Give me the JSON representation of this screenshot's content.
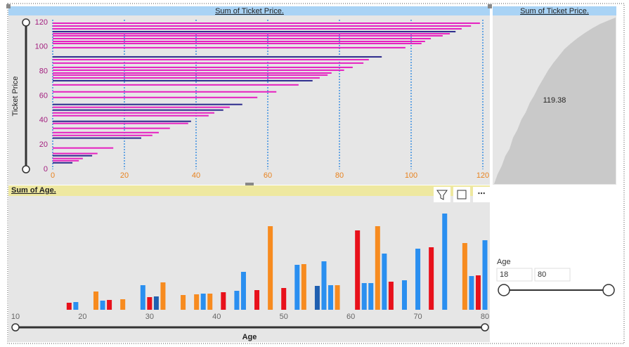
{
  "chart_data": [
    {
      "type": "hbar",
      "title": "Sum of Ticket Price.",
      "y_label": "Ticket Price",
      "xlim": [
        0,
        120
      ],
      "xticks": [
        0,
        20,
        40,
        60,
        80,
        100,
        120
      ],
      "ylim": [
        0,
        120
      ],
      "yticks": [
        0,
        20,
        40,
        60,
        80,
        100,
        120
      ],
      "grid": true,
      "series": [
        {
          "color": "#e520c0",
          "y": [
            119.4,
            117.1,
            114.8,
            110.8,
            109.1,
            106.8,
            104.5,
            102.8,
            99.4,
            89.6,
            86.8,
            83.3,
            81.0,
            78.7,
            77.0,
            74.7,
            69.0,
            63.3,
            58.7,
            50.7,
            46.1,
            43.8,
            37.5,
            33.5,
            30.0,
            27.7,
            17.4,
            12.9,
            8.8,
            7.0
          ],
          "values": [
            119.2,
            116.7,
            114.1,
            110.8,
            108.8,
            105.5,
            103.9,
            102.9,
            98.4,
            88.2,
            86.7,
            83.7,
            81.3,
            77.8,
            76.7,
            74.5,
            68.6,
            62.4,
            57.1,
            49.4,
            45.1,
            43.5,
            37.8,
            32.7,
            29.6,
            27.8,
            16.9,
            12.5,
            8.4,
            7.3
          ]
        },
        {
          "color": "#2b2a8c",
          "y": [
            112.5,
            91.9,
            72.4,
            53.0,
            48.4,
            39.2,
            25.5,
            11.1,
            5.3
          ],
          "values": [
            112.4,
            91.8,
            72.5,
            52.9,
            47.6,
            38.6,
            24.7,
            11.0,
            5.5
          ]
        }
      ]
    },
    {
      "type": "card",
      "title": "Sum of Ticket Price.",
      "value": 119.38
    },
    {
      "type": "column",
      "title": "Sum of Age.",
      "x_label": "Age",
      "xlim": [
        10,
        80
      ],
      "xticks": [
        10,
        20,
        30,
        40,
        50,
        60,
        70,
        80
      ],
      "ylim": [
        0,
        150
      ],
      "series": [
        {
          "color": "#e8111b",
          "x": [
            18,
            24,
            30,
            41,
            46,
            50,
            61,
            66,
            72,
            79
          ],
          "values": [
            10,
            14,
            18,
            25,
            28,
            31,
            113,
            40,
            89,
            49
          ]
        },
        {
          "color": "#2a8ff0",
          "x": [
            19,
            23,
            29,
            38,
            43,
            44,
            52,
            56,
            57,
            62,
            63,
            65,
            68,
            70,
            74,
            78,
            80
          ],
          "values": [
            11,
            13,
            35,
            23,
            27,
            54,
            64,
            69,
            35,
            38,
            38,
            80,
            42,
            87,
            137,
            48,
            99
          ]
        },
        {
          "color": "#f78b1f",
          "x": [
            22,
            26,
            32,
            35,
            37,
            39,
            48,
            53,
            58,
            64,
            77
          ],
          "values": [
            26,
            15,
            39,
            21,
            22,
            23,
            119,
            65,
            35,
            119,
            95
          ]
        },
        {
          "color": "#1f5fb0",
          "x": [
            31,
            55
          ],
          "values": [
            19,
            34
          ]
        }
      ]
    }
  ],
  "slicer": {
    "title": "Age",
    "min": 18,
    "max": 80
  }
}
